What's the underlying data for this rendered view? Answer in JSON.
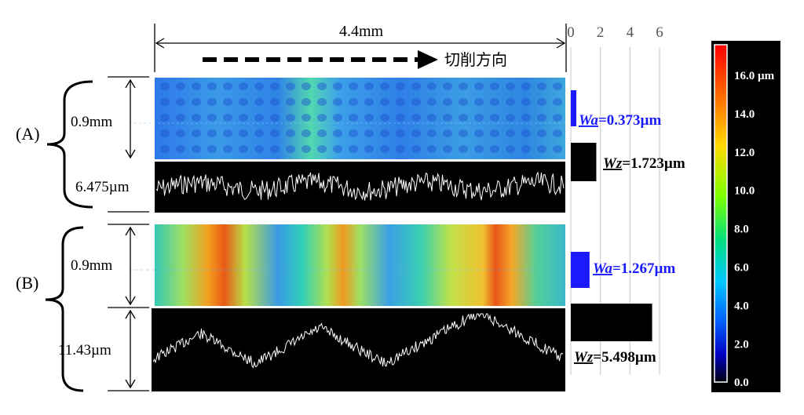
{
  "dimension": {
    "width_label": "4.4mm",
    "direction_label": "切削方向"
  },
  "panels": {
    "A": {
      "label": "(A)",
      "height_label": "0.9mm",
      "profile_label": "6.475µm",
      "wa": "=0.373µm",
      "wz": "=1.723µm"
    },
    "B": {
      "label": "(B)",
      "height_label": "0.9mm",
      "profile_label": "11.43µm",
      "wa": "=1.267µm",
      "wz": "=5.498µm"
    }
  },
  "param_names": {
    "wa": "Wa",
    "wz": "Wz"
  },
  "bar_axis": {
    "ticks": [
      "0",
      "2",
      "4",
      "6"
    ]
  },
  "colorbar": {
    "labels": [
      "16.0 µm",
      "14.0",
      "12.0",
      "10.0",
      "8.0",
      "6.0",
      "4.0",
      "2.0",
      "0.0"
    ]
  },
  "chart_data": {
    "type": "bar",
    "categories": [
      "(A) Wa",
      "(A) Wz",
      "(B) Wa",
      "(B) Wz"
    ],
    "values": [
      0.373,
      1.723,
      1.267,
      5.498
    ],
    "ticks": [
      0,
      2,
      4,
      6
    ],
    "xlim": [
      0,
      6
    ]
  },
  "colors": {
    "wa_blue": "#1a1aff",
    "wz_black": "#000000"
  }
}
